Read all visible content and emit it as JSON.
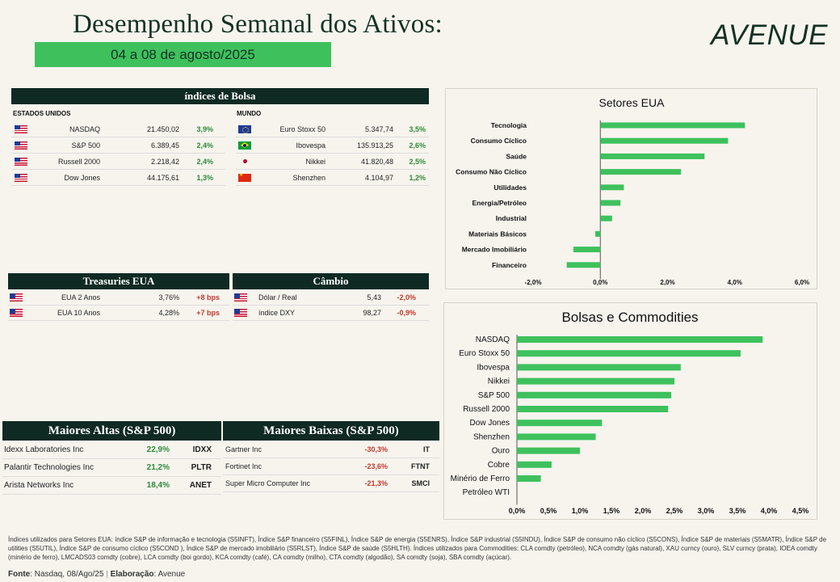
{
  "header": {
    "title": "Desempenho Semanal dos Ativos:",
    "date_range": "04 a 08 de agosto/2025",
    "logo": "AVENUE"
  },
  "indices": {
    "title": "índices de Bolsa",
    "us_label": "ESTADOS UNIDOS",
    "world_label": "MUNDO",
    "us": [
      {
        "flag": "us",
        "name": "NASDAQ",
        "value": "21.450,02",
        "change": "3,9%"
      },
      {
        "flag": "us",
        "name": "S&P 500",
        "value": "6.389,45",
        "change": "2,4%"
      },
      {
        "flag": "us",
        "name": "Russell 2000",
        "value": "2.218,42",
        "change": "2,4%"
      },
      {
        "flag": "us",
        "name": "Dow Jones",
        "value": "44.175,61",
        "change": "1,3%"
      }
    ],
    "world": [
      {
        "flag": "eu",
        "name": "Euro Stoxx 50",
        "value": "5.347,74",
        "change": "3,5%"
      },
      {
        "flag": "br",
        "name": "Ibovespa",
        "value": "135.913,25",
        "change": "2,6%"
      },
      {
        "flag": "jp",
        "name": "Nikkei",
        "value": "41.820,48",
        "change": "2,5%"
      },
      {
        "flag": "cn",
        "name": "Shenzhen",
        "value": "4.104,97",
        "change": "1,2%"
      }
    ]
  },
  "treasuries": {
    "title": "Treasuries EUA",
    "rows": [
      {
        "flag": "us",
        "name": "EUA 2 Anos",
        "value": "3,76%",
        "change": "+8 bps"
      },
      {
        "flag": "us",
        "name": "EUA 10 Anos",
        "value": "4,28%",
        "change": "+7 bps"
      }
    ]
  },
  "cambio": {
    "title": "Câmbio",
    "rows": [
      {
        "flag": "us",
        "name": "Dólar / Real",
        "value": "5,43",
        "change": "-2,0%"
      },
      {
        "flag": "us",
        "name": "índice DXY",
        "value": "98,27",
        "change": "-0,9%"
      }
    ]
  },
  "altas": {
    "title": "Maiores Altas (S&P 500)",
    "rows": [
      {
        "name": "Idexx Laboratories Inc",
        "change": "22,9%",
        "ticker": "IDXX"
      },
      {
        "name": "Palantir Technologies Inc",
        "change": "21,2%",
        "ticker": "PLTR"
      },
      {
        "name": "Arista Networks Inc",
        "change": "18,4%",
        "ticker": "ANET"
      }
    ]
  },
  "baixas": {
    "title": "Maiores Baixas (S&P 500)",
    "rows": [
      {
        "name": "Gartner Inc",
        "change": "-30,3%",
        "ticker": "IT"
      },
      {
        "name": "Fortinet Inc",
        "change": "-23,6%",
        "ticker": "FTNT"
      },
      {
        "name": "Super Micro Computer Inc",
        "change": "-21,3%",
        "ticker": "SMCI"
      }
    ]
  },
  "chart_data": [
    {
      "type": "bar",
      "orientation": "horizontal",
      "title": "Setores EUA",
      "categories": [
        "Tecnologia",
        "Consumo Cíclico",
        "Saúde",
        "Consumo Não Cíclico",
        "Utilidades",
        "Energia/Petróleo",
        "Industrial",
        "Materiais Básicos",
        "Mercado Imobiliário",
        "Financeiro"
      ],
      "values": [
        4.3,
        3.8,
        3.1,
        2.4,
        0.7,
        0.6,
        0.35,
        -0.15,
        -0.8,
        -1.0
      ],
      "xlim": [
        -2.0,
        6.0
      ],
      "ticks": [
        "-2,0%",
        "0,0%",
        "2,0%",
        "4,0%",
        "6,0%"
      ],
      "tick_values": [
        -2,
        0,
        2,
        4,
        6
      ],
      "color": "#3ec15d"
    },
    {
      "type": "bar",
      "orientation": "horizontal",
      "title": "Bolsas e Commodities",
      "categories": [
        "NASDAQ",
        "Euro Stoxx 50",
        "Ibovespa",
        "Nikkei",
        "S&P 500",
        "Russell 2000",
        "Dow Jones",
        "Shenzhen",
        "Ouro",
        "Cobre",
        "Minério de Ferro",
        "Petróleo WTI"
      ],
      "values": [
        3.9,
        3.55,
        2.6,
        2.5,
        2.45,
        2.4,
        1.35,
        1.25,
        1.0,
        0.55,
        0.38,
        0.0
      ],
      "xlim": [
        0,
        4.5
      ],
      "ticks": [
        "0,0%",
        "0,5%",
        "1,0%",
        "1,5%",
        "2,0%",
        "2,5%",
        "3,0%",
        "3,5%",
        "4,0%",
        "4,5%"
      ],
      "tick_values": [
        0,
        0.5,
        1,
        1.5,
        2,
        2.5,
        3,
        3.5,
        4,
        4.5
      ],
      "color": "#3ec15d"
    }
  ],
  "footer": {
    "note": "Índices utilizados para Setores EUA: índice S&P de informação e tecnologia (S5INFT), Índice S&P financeiro (S5FINL), Índice S&P de energia (S5ENRS), Índice S&P industrial (S5INDU), Índice S&P de consumo não cíclico (S5CONS), Índice S&P de materiais (S5MATR), Índice S&P de utilities (S5UTIL), Índice S&P de consumo cíclico (S5COND ), Índice S&P de mercado imobiliário (S5RLST), Índice S&P de saúde (S5HLTH). Índices utilizados para Commodities: CLA comdty (petróleo), NCA comdty (gás natural), XAU curncy (ouro), SLV curncy (prata), IOEA comdty (minério de ferro), LMCADS03 comdty (cobre), LCA comdty (boi gordo), KCA comdty (café), CA comdty (milho), CTA comdty (algodão), SA comdty (soja), SBA comdty (açúcar).",
    "source_label": "Fonte",
    "source": ": Nasdaq, 08/Ago/25",
    "elab_label": "Elaboração",
    "elab": ": Avenue"
  }
}
